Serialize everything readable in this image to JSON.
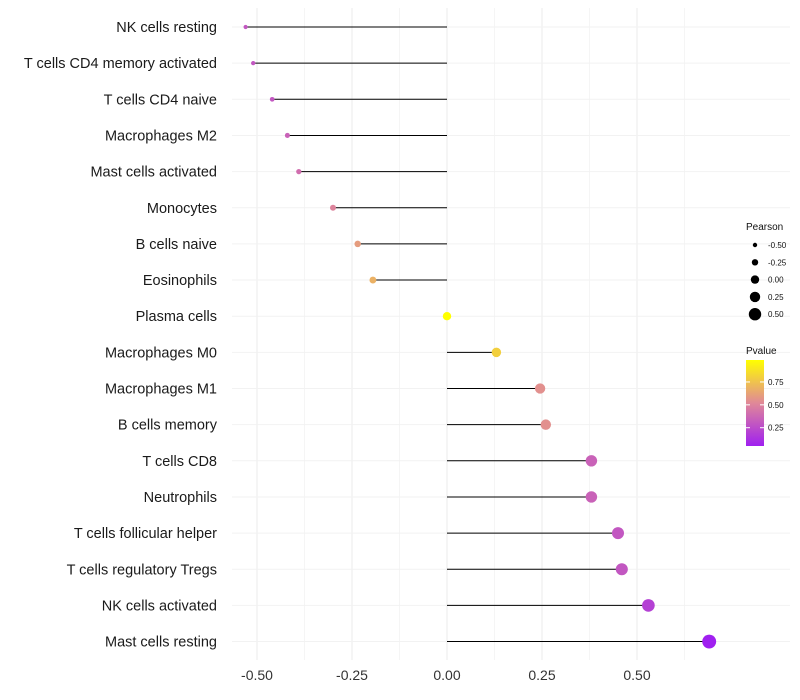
{
  "chart_data": {
    "type": "lollipop",
    "title": "",
    "xlabel": "",
    "ylabel": "",
    "xlim": [
      -0.55,
      0.7
    ],
    "x_ticks": [
      -0.5,
      -0.25,
      0.0,
      0.25,
      0.5
    ],
    "x_tick_labels": [
      "-0.50",
      "-0.25",
      "0.00",
      "0.25",
      "0.50"
    ],
    "categories": [
      "NK cells resting",
      "T cells CD4 memory activated",
      "T cells CD4 naive",
      "Macrophages M2",
      "Mast cells activated",
      "Monocytes",
      "B cells naive",
      "Eosinophils",
      "Plasma cells",
      "Macrophages M0",
      "Macrophages M1",
      "B cells memory",
      "T cells CD8",
      "Neutrophils",
      "T cells follicular helper",
      "T cells regulatory  Tregs",
      "NK cells activated",
      "Mast cells resting"
    ],
    "pearson": [
      -0.53,
      -0.51,
      -0.46,
      -0.42,
      -0.39,
      -0.3,
      -0.235,
      -0.195,
      0.0,
      0.13,
      0.245,
      0.26,
      0.38,
      0.38,
      0.45,
      0.46,
      0.53,
      0.69
    ],
    "pvalue": [
      0.3,
      0.3,
      0.3,
      0.35,
      0.4,
      0.5,
      0.6,
      0.68,
      0.99,
      0.8,
      0.55,
      0.55,
      0.35,
      0.35,
      0.3,
      0.3,
      0.2,
      0.05
    ],
    "legend_size": {
      "title": "Pearson",
      "values": [
        -0.5,
        -0.25,
        0.0,
        0.25,
        0.5
      ],
      "labels": [
        "-0.50",
        "-0.25",
        "0.00",
        "0.25",
        "0.50"
      ]
    },
    "legend_color": {
      "title": "Pvalue",
      "labels": [
        "0.75",
        "0.50",
        "0.25"
      ],
      "values": [
        0.75,
        0.5,
        0.25
      ],
      "range": [
        0.05,
        0.99
      ],
      "low_color": "#a020f0",
      "mid_color": "#e08898",
      "high_color": "#ffff00"
    }
  }
}
